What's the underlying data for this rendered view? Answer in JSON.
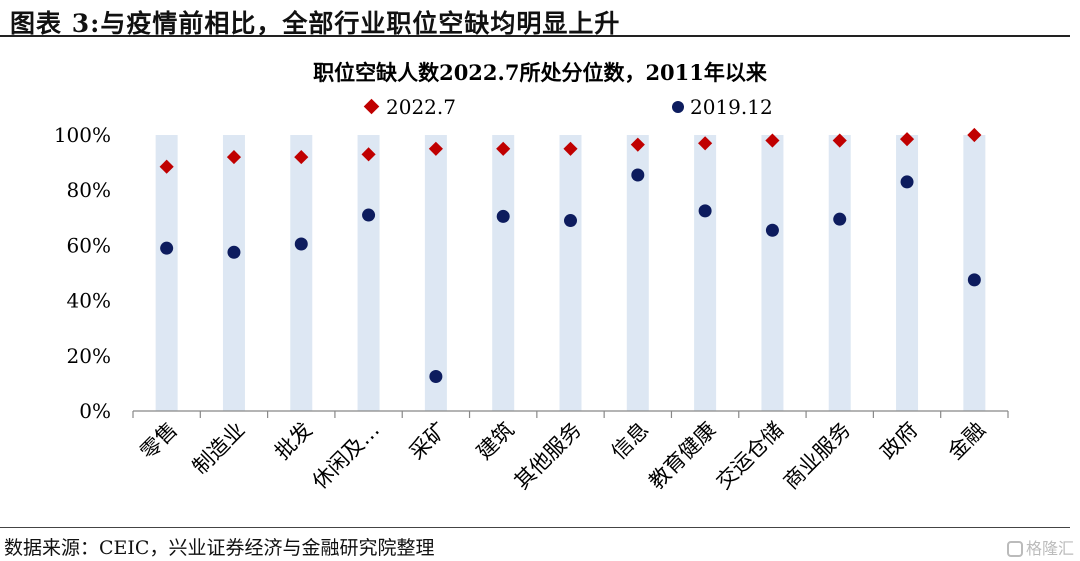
{
  "figure": {
    "label": "图表 3:与疫情前相比，全部行业职位空缺均明显上升",
    "source": "数据来源：CEIC，兴业证券经济与金融研究院整理",
    "watermark": "格隆汇"
  },
  "colors": {
    "bar": "#dde7f3",
    "series_2022": "#c00000",
    "series_2019": "#0d1c5e",
    "axis": "#888888"
  },
  "chart_data": {
    "type": "scatter",
    "title": "职位空缺人数2022.7所处分位数，2011年以来",
    "categories": [
      "零售",
      "制造业",
      "批发",
      "休闲及…",
      "采矿",
      "建筑",
      "其他服务",
      "信息",
      "教育健康",
      "交运仓储",
      "商业服务",
      "政府",
      "金融"
    ],
    "yticks": [
      "0%",
      "20%",
      "40%",
      "60%",
      "80%",
      "100%"
    ],
    "ylim": [
      0,
      100
    ],
    "bars": {
      "name": "",
      "values": [
        100,
        100,
        100,
        100,
        100,
        100,
        100,
        100,
        100,
        100,
        100,
        100,
        100
      ]
    },
    "series": [
      {
        "name": "2022.7",
        "marker": "diamond",
        "values": [
          88.5,
          92,
          92,
          93,
          95,
          95,
          95,
          96.5,
          97,
          98,
          98,
          98.5,
          100
        ]
      },
      {
        "name": "2019.12",
        "marker": "circle",
        "values": [
          59,
          57.5,
          60.5,
          71,
          12.5,
          70.5,
          69,
          85.5,
          72.5,
          65.5,
          69.5,
          83,
          47.5
        ]
      }
    ],
    "grid": false,
    "legend_position": "top"
  }
}
